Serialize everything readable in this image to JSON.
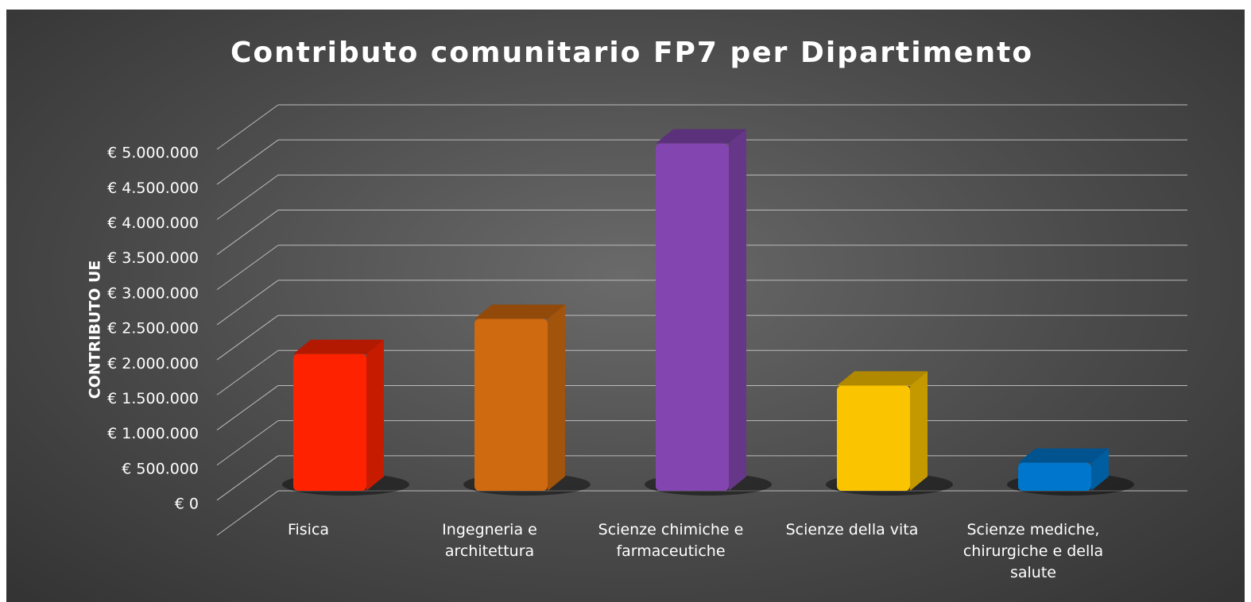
{
  "chart_data": {
    "type": "bar3d",
    "title": "Contributo comunitario FP7 per Dipartimento",
    "y_axis_label": "CONTRIBUTO UE",
    "categories": [
      "Fisica",
      "Ingegneria e architettura",
      "Scienze chimiche e farmaceutiche",
      "Scienze della vita",
      "Scienze mediche, chirurgiche e della salute"
    ],
    "values": [
      1950000,
      2450000,
      4950000,
      1500000,
      400000
    ],
    "colors": [
      "#ff2200",
      "#d06a10",
      "#8346b0",
      "#fbc400",
      "#0077cc"
    ],
    "ylim": [
      0,
      5500000
    ],
    "yticks": [
      {
        "value": 0,
        "label": "€ 0"
      },
      {
        "value": 500000,
        "label": "€ 500.000"
      },
      {
        "value": 1000000,
        "label": "€ 1.000.000"
      },
      {
        "value": 1500000,
        "label": "€ 1.500.000"
      },
      {
        "value": 2000000,
        "label": "€ 2.000.000"
      },
      {
        "value": 2500000,
        "label": "€ 2.500.000"
      },
      {
        "value": 3000000,
        "label": "€ 3.000.000"
      },
      {
        "value": 3500000,
        "label": "€ 3.500.000"
      },
      {
        "value": 4000000,
        "label": "€ 4.000.000"
      },
      {
        "value": 4500000,
        "label": "€ 4.500.000"
      },
      {
        "value": 5000000,
        "label": "€ 5.000.000"
      }
    ],
    "grid": true
  }
}
